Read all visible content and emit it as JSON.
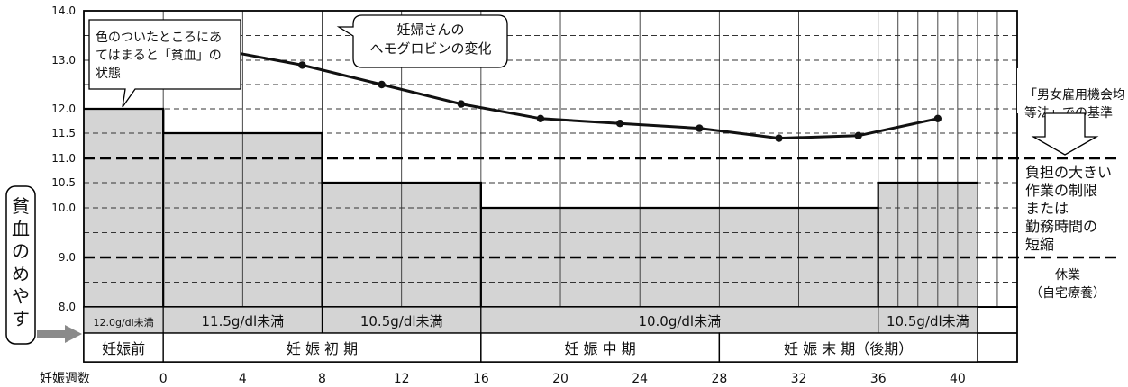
{
  "chart_data": {
    "type": "line",
    "y_ticks": [
      "14.0",
      "13.0",
      "12.0",
      "11.5",
      "11.0",
      "10.5",
      "10.0",
      "9.0",
      "8.0"
    ],
    "ylim": [
      8.0,
      14.0
    ],
    "x_axis_label": "妊娠週数",
    "x_ticks": [
      "0",
      "4",
      "8",
      "12",
      "16",
      "20",
      "24",
      "28",
      "32",
      "36",
      "40"
    ],
    "xlim": [
      -4,
      43
    ],
    "series": [
      {
        "name": "妊婦さんのヘモグロビンの変化",
        "points": [
          {
            "week": 3,
            "value": 13.2
          },
          {
            "week": 7,
            "value": 12.9
          },
          {
            "week": 11,
            "value": 12.5
          },
          {
            "week": 15,
            "value": 12.1
          },
          {
            "week": 19,
            "value": 11.8
          },
          {
            "week": 23,
            "value": 11.7
          },
          {
            "week": 27,
            "value": 11.6
          },
          {
            "week": 31,
            "value": 11.4
          },
          {
            "week": 35,
            "value": 11.45
          },
          {
            "week": 39,
            "value": 11.8
          }
        ]
      }
    ],
    "anemia_thresholds": [
      {
        "from": -4,
        "to": 0,
        "value": 12.0,
        "label": "12.0g/dl未満"
      },
      {
        "from": 0,
        "to": 8,
        "value": 11.5,
        "label": "11.5g/dl未満"
      },
      {
        "from": 8,
        "to": 16,
        "value": 10.5,
        "label": "10.5g/dl未満"
      },
      {
        "from": 16,
        "to": 36,
        "value": 10.0,
        "label": "10.0g/dl未満"
      },
      {
        "from": 36,
        "to": 41,
        "value": 10.5,
        "label": "10.5g/dl未満"
      }
    ],
    "reference_lines": [
      11.0,
      9.0
    ],
    "periods": [
      {
        "from": -4,
        "to": 0,
        "label": "妊娠前"
      },
      {
        "from": 0,
        "to": 16,
        "label": "妊 娠 初 期"
      },
      {
        "from": 16,
        "to": 28,
        "label": "妊 娠 中 期"
      },
      {
        "from": 28,
        "to": 41,
        "label": "妊 娠 末 期（後期）"
      }
    ],
    "annotations": {
      "shaded_note": [
        "色のついたところにあ",
        "てはまると「貧血」の",
        "状態"
      ],
      "line_note": [
        "妊婦さんの",
        "へモグロビンの変化"
      ],
      "left_label_chars": [
        "貧",
        "血",
        "の",
        "め",
        "や",
        "す"
      ],
      "standard_title": [
        "「男女雇用機会均",
        "等法」での基準"
      ],
      "standard_work_limit": [
        "負担の大きい",
        "作業の制限",
        "または",
        "勤務時間の",
        "短縮"
      ],
      "standard_rest": [
        "休業",
        "（自宅療養）"
      ]
    },
    "colors": {
      "shade": "#d4d4d4",
      "line": "#111111",
      "grid": "#333333",
      "callout_arrow": "#8a8a8a"
    }
  }
}
